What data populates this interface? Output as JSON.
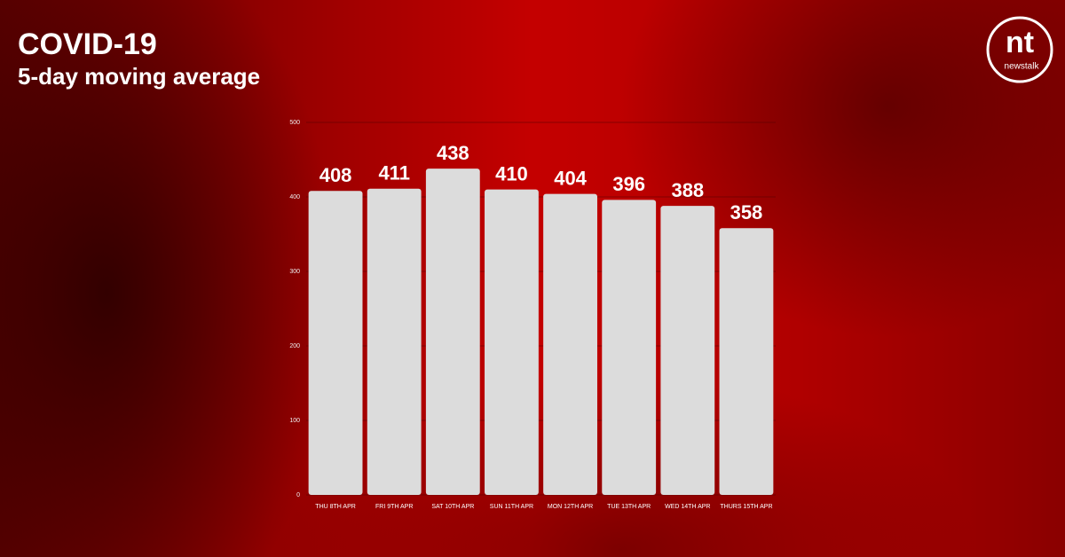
{
  "chart_data": {
    "type": "bar",
    "title": "COVID-19",
    "subtitle": "5-day moving average",
    "categories": [
      "THU 8TH APR",
      "FRI 9TH APR",
      "SAT 10TH APR",
      "SUN 11TH APR",
      "MON 12TH APR",
      "TUE 13TH APR",
      "WED 14TH APR",
      "THURS 15TH APR"
    ],
    "values": [
      408,
      411,
      438,
      410,
      404,
      396,
      388,
      358
    ],
    "color": "#dcdcdc",
    "ylim": [
      0,
      500
    ],
    "yticks": [
      0,
      100,
      200,
      300,
      400,
      500
    ],
    "grid": true
  },
  "logo": {
    "mark": "nt",
    "text": "newstalk"
  }
}
